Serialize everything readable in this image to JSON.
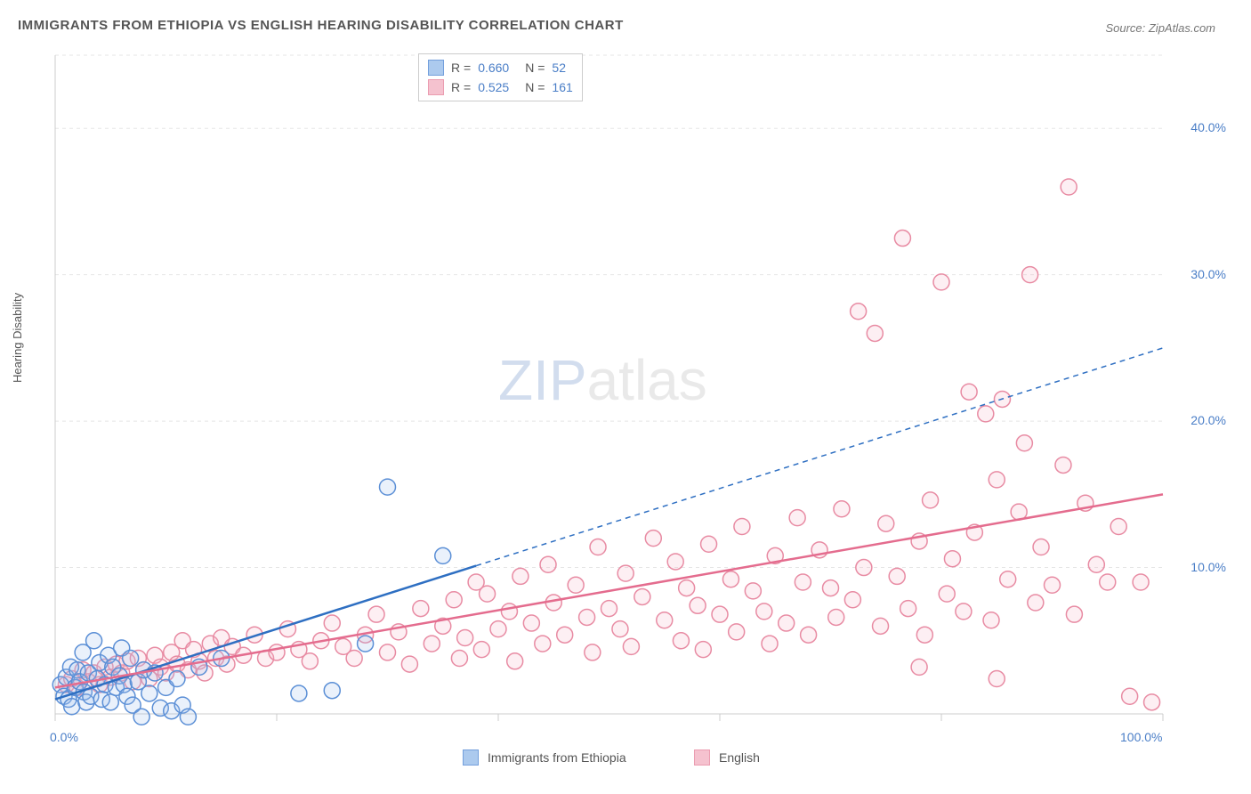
{
  "title": "IMMIGRANTS FROM ETHIOPIA VS ENGLISH HEARING DISABILITY CORRELATION CHART",
  "source": "Source: ZipAtlas.com",
  "y_axis_label": "Hearing Disability",
  "watermark": {
    "zip": "ZIP",
    "rest": "atlas"
  },
  "chart": {
    "type": "scatter",
    "xlim": [
      0,
      100
    ],
    "ylim": [
      0,
      45
    ],
    "x_ticks": [
      0,
      20,
      40,
      60,
      80,
      100
    ],
    "x_tick_labels": {
      "0": "0.0%",
      "100": "100.0%"
    },
    "y_ticks": [
      10,
      20,
      30,
      40
    ],
    "y_tick_labels": {
      "10": "10.0%",
      "20": "20.0%",
      "30": "30.0%",
      "40": "40.0%"
    },
    "grid_color": "#e5e5e5",
    "axis_color": "#cccccc",
    "background_color": "#ffffff",
    "marker_radius": 9,
    "marker_stroke_width": 1.5,
    "marker_fill_opacity": 0.22
  },
  "series": {
    "blue": {
      "label": "Immigrants from Ethiopia",
      "R": "0.660",
      "N": "52",
      "color_stroke": "#5b8fd6",
      "color_fill": "#9ec1ec",
      "trend_color": "#2e6fc2",
      "trend_solid_xmax": 38,
      "trend": {
        "x1": 0,
        "y1": 1.0,
        "x2": 100,
        "y2": 25.0
      },
      "points": [
        [
          0.5,
          2.0
        ],
        [
          0.8,
          1.2
        ],
        [
          1.0,
          2.5
        ],
        [
          1.2,
          1.0
        ],
        [
          1.4,
          3.2
        ],
        [
          1.5,
          0.5
        ],
        [
          1.8,
          1.8
        ],
        [
          2.0,
          3.0
        ],
        [
          2.2,
          2.2
        ],
        [
          2.5,
          4.2
        ],
        [
          2.6,
          1.5
        ],
        [
          2.8,
          0.8
        ],
        [
          3.0,
          2.8
        ],
        [
          3.2,
          1.2
        ],
        [
          3.5,
          5.0
        ],
        [
          3.8,
          2.4
        ],
        [
          4.0,
          3.5
        ],
        [
          4.2,
          1.0
        ],
        [
          4.5,
          2.0
        ],
        [
          4.8,
          4.0
        ],
        [
          5.0,
          0.8
        ],
        [
          5.2,
          3.2
        ],
        [
          5.5,
          1.8
        ],
        [
          5.8,
          2.6
        ],
        [
          6.0,
          4.5
        ],
        [
          6.2,
          2.0
        ],
        [
          6.5,
          1.2
        ],
        [
          6.8,
          3.8
        ],
        [
          7.0,
          0.6
        ],
        [
          7.5,
          2.2
        ],
        [
          7.8,
          -0.2
        ],
        [
          8.0,
          3.0
        ],
        [
          8.5,
          1.4
        ],
        [
          9.0,
          2.8
        ],
        [
          9.5,
          0.4
        ],
        [
          10.0,
          1.8
        ],
        [
          10.5,
          0.2
        ],
        [
          11.0,
          2.4
        ],
        [
          11.5,
          0.6
        ],
        [
          12.0,
          -0.2
        ],
        [
          13.0,
          3.2
        ],
        [
          15.0,
          3.8
        ],
        [
          22.0,
          1.4
        ],
        [
          25.0,
          1.6
        ],
        [
          28.0,
          4.8
        ],
        [
          30.0,
          15.5
        ],
        [
          35.0,
          10.8
        ]
      ]
    },
    "pink": {
      "label": "English",
      "R": "0.525",
      "N": "161",
      "color_stroke": "#e88ba3",
      "color_fill": "#f4b8c7",
      "trend_color": "#e46c8e",
      "trend_solid_xmax": 100,
      "trend": {
        "x1": 0,
        "y1": 1.8,
        "x2": 100,
        "y2": 15.0
      },
      "points": [
        [
          1,
          2.0
        ],
        [
          1.5,
          2.4
        ],
        [
          2,
          1.8
        ],
        [
          2.5,
          3.0
        ],
        [
          3,
          2.2
        ],
        [
          3.5,
          2.8
        ],
        [
          4,
          2.0
        ],
        [
          4.5,
          3.2
        ],
        [
          5,
          2.5
        ],
        [
          5.5,
          3.4
        ],
        [
          6,
          2.8
        ],
        [
          6.5,
          3.6
        ],
        [
          7,
          2.2
        ],
        [
          7.5,
          3.8
        ],
        [
          8,
          3.0
        ],
        [
          8.5,
          2.4
        ],
        [
          9,
          4.0
        ],
        [
          9.5,
          3.2
        ],
        [
          10,
          2.8
        ],
        [
          10.5,
          4.2
        ],
        [
          11,
          3.4
        ],
        [
          11.5,
          5.0
        ],
        [
          12,
          3.0
        ],
        [
          12.5,
          4.4
        ],
        [
          13,
          3.6
        ],
        [
          13.5,
          2.8
        ],
        [
          14,
          4.8
        ],
        [
          14.5,
          3.8
        ],
        [
          15,
          5.2
        ],
        [
          15.5,
          3.4
        ],
        [
          16,
          4.6
        ],
        [
          17,
          4.0
        ],
        [
          18,
          5.4
        ],
        [
          19,
          3.8
        ],
        [
          20,
          4.2
        ],
        [
          21,
          5.8
        ],
        [
          22,
          4.4
        ],
        [
          23,
          3.6
        ],
        [
          24,
          5.0
        ],
        [
          25,
          6.2
        ],
        [
          26,
          4.6
        ],
        [
          27,
          3.8
        ],
        [
          28,
          5.4
        ],
        [
          29,
          6.8
        ],
        [
          30,
          4.2
        ],
        [
          31,
          5.6
        ],
        [
          32,
          3.4
        ],
        [
          33,
          7.2
        ],
        [
          34,
          4.8
        ],
        [
          35,
          6.0
        ],
        [
          36,
          7.8
        ],
        [
          36.5,
          3.8
        ],
        [
          37,
          5.2
        ],
        [
          38,
          9.0
        ],
        [
          38.5,
          4.4
        ],
        [
          39,
          8.2
        ],
        [
          40,
          5.8
        ],
        [
          41,
          7.0
        ],
        [
          41.5,
          3.6
        ],
        [
          42,
          9.4
        ],
        [
          43,
          6.2
        ],
        [
          44,
          4.8
        ],
        [
          44.5,
          10.2
        ],
        [
          45,
          7.6
        ],
        [
          46,
          5.4
        ],
        [
          47,
          8.8
        ],
        [
          48,
          6.6
        ],
        [
          48.5,
          4.2
        ],
        [
          49,
          11.4
        ],
        [
          50,
          7.2
        ],
        [
          51,
          5.8
        ],
        [
          51.5,
          9.6
        ],
        [
          52,
          4.6
        ],
        [
          53,
          8.0
        ],
        [
          54,
          12.0
        ],
        [
          55,
          6.4
        ],
        [
          56,
          10.4
        ],
        [
          56.5,
          5.0
        ],
        [
          57,
          8.6
        ],
        [
          58,
          7.4
        ],
        [
          58.5,
          4.4
        ],
        [
          59,
          11.6
        ],
        [
          60,
          6.8
        ],
        [
          61,
          9.2
        ],
        [
          61.5,
          5.6
        ],
        [
          62,
          12.8
        ],
        [
          63,
          8.4
        ],
        [
          64,
          7.0
        ],
        [
          64.5,
          4.8
        ],
        [
          65,
          10.8
        ],
        [
          66,
          6.2
        ],
        [
          67,
          13.4
        ],
        [
          67.5,
          9.0
        ],
        [
          68,
          5.4
        ],
        [
          69,
          11.2
        ],
        [
          70,
          8.6
        ],
        [
          70.5,
          6.6
        ],
        [
          71,
          14.0
        ],
        [
          72,
          7.8
        ],
        [
          72.5,
          27.5
        ],
        [
          73,
          10.0
        ],
        [
          74,
          26.0
        ],
        [
          74.5,
          6.0
        ],
        [
          75,
          13.0
        ],
        [
          76,
          9.4
        ],
        [
          76.5,
          32.5
        ],
        [
          77,
          7.2
        ],
        [
          78,
          11.8
        ],
        [
          78.5,
          5.4
        ],
        [
          79,
          14.6
        ],
        [
          80,
          29.5
        ],
        [
          80.5,
          8.2
        ],
        [
          81,
          10.6
        ],
        [
          82,
          7.0
        ],
        [
          82.5,
          22.0
        ],
        [
          83,
          12.4
        ],
        [
          84,
          20.5
        ],
        [
          84.5,
          6.4
        ],
        [
          85,
          16.0
        ],
        [
          85.5,
          21.5
        ],
        [
          86,
          9.2
        ],
        [
          87,
          13.8
        ],
        [
          87.5,
          18.5
        ],
        [
          88,
          30.0
        ],
        [
          88.5,
          7.6
        ],
        [
          89,
          11.4
        ],
        [
          90,
          8.8
        ],
        [
          91,
          17.0
        ],
        [
          91.5,
          36.0
        ],
        [
          92,
          6.8
        ],
        [
          93,
          14.4
        ],
        [
          94,
          10.2
        ],
        [
          95,
          9.0
        ],
        [
          96,
          12.8
        ],
        [
          97,
          1.2
        ],
        [
          98,
          9.0
        ],
        [
          99,
          0.8
        ],
        [
          85,
          2.4
        ],
        [
          78,
          3.2
        ]
      ]
    }
  },
  "legend_bottom": [
    {
      "series": "blue"
    },
    {
      "series": "pink"
    }
  ]
}
